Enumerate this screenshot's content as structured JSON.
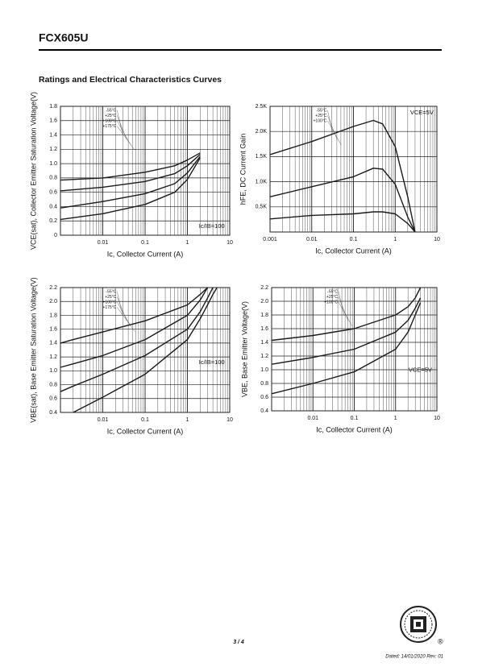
{
  "header": {
    "part": "FCX605U",
    "section": "Ratings and Electrical Characteristics Curves"
  },
  "footer": {
    "page": "3 / 4",
    "dated": "Dated: 14/01/2020 Rev: 01",
    "logo_mark": "®"
  },
  "chart_data": [
    {
      "type": "line",
      "xscale": "log",
      "grid": true,
      "legend": "top",
      "y_label": "VCE(sat), Collector Emitter Saturation Voltage(V)",
      "x_label": "Ic, Collector Current (A)",
      "annotation": "Ic/IB=100",
      "xlim": [
        0.001,
        10
      ],
      "xticks": [
        0.01,
        0.1,
        1,
        10
      ],
      "ylim": [
        0,
        1.8
      ],
      "yticks": [
        0,
        0.2,
        0.4,
        0.6,
        0.8,
        {
          "value": 1,
          "label": "1.0"
        },
        1.2,
        1.4,
        1.6,
        1.8
      ],
      "x": [
        0.001,
        0.01,
        0.1,
        0.5,
        1,
        2
      ],
      "series": [
        {
          "name": "-55°C",
          "color": "#1a1a1a",
          "values": [
            0.77,
            0.8,
            0.88,
            0.97,
            1.05,
            1.15
          ]
        },
        {
          "name": "+25°C",
          "color": "#1a1a1a",
          "values": [
            0.62,
            0.67,
            0.75,
            0.86,
            0.97,
            1.13
          ]
        },
        {
          "name": "+100°C",
          "color": "#1a1a1a",
          "values": [
            0.38,
            0.47,
            0.58,
            0.72,
            0.87,
            1.1
          ]
        },
        {
          "name": "+175°C",
          "color": "#1a1a1a",
          "values": [
            0.22,
            0.3,
            0.43,
            0.6,
            0.78,
            1.08
          ]
        }
      ]
    },
    {
      "type": "line",
      "xscale": "log",
      "grid": true,
      "legend": "top",
      "y_label": "hFE, DC Current Gain",
      "x_label": "Ic, Collector Current (A)",
      "annotation": "VCE=5V",
      "xlim": [
        0.001,
        10
      ],
      "xticks": [
        0.001,
        0.01,
        0.1,
        1,
        10
      ],
      "ylim": [
        0,
        2500
      ],
      "yticks": [
        {
          "value": 500,
          "label": "0.5K"
        },
        {
          "value": 1000,
          "label": "1.0K"
        },
        {
          "value": 1500,
          "label": "1.5K"
        },
        {
          "value": 2000,
          "label": "2.0K"
        },
        {
          "value": 2500,
          "label": "2.5K"
        }
      ],
      "x": [
        0.001,
        0.01,
        0.1,
        0.3,
        0.5,
        1,
        2,
        3
      ],
      "series": [
        {
          "name": "-55°C",
          "color": "#1a1a1a",
          "values": [
            260,
            330,
            360,
            400,
            400,
            360,
            170,
            0
          ]
        },
        {
          "name": "+25°C",
          "color": "#1a1a1a",
          "values": [
            700,
            900,
            1100,
            1270,
            1250,
            950,
            300,
            0
          ]
        },
        {
          "name": "+100°C",
          "color": "#1a1a1a",
          "values": [
            1540,
            1800,
            2100,
            2220,
            2150,
            1700,
            700,
            0
          ]
        }
      ]
    },
    {
      "type": "line",
      "xscale": "log",
      "grid": true,
      "legend": "top",
      "y_label": "VBE(sat), Base Emitter Saturation Voltage(V)",
      "x_label": "Ic, Collector Current (A)",
      "annotation": "Ic/IB=100",
      "xlim": [
        0.001,
        10
      ],
      "xticks": [
        0.01,
        0.1,
        1,
        10
      ],
      "ylim": [
        0.4,
        2.2
      ],
      "yticks": [
        0.4,
        0.6,
        0.8,
        {
          "value": 1,
          "label": "1.0"
        },
        1.2,
        1.4,
        1.6,
        1.8,
        {
          "value": 2,
          "label": "2.0"
        },
        2.2
      ],
      "x": [
        0.001,
        0.002,
        0.01,
        0.1,
        1,
        2,
        3,
        4,
        5
      ],
      "series": [
        {
          "name": "-55°C",
          "color": "#1a1a1a",
          "values": [
            1.4,
            1.45,
            1.56,
            1.72,
            1.95,
            2.1,
            2.2,
            null,
            null
          ]
        },
        {
          "name": "+25°C",
          "color": "#1a1a1a",
          "values": [
            1.05,
            1.1,
            1.22,
            1.45,
            1.8,
            2.02,
            2.2,
            null,
            null
          ]
        },
        {
          "name": "+100°C",
          "color": "#1a1a1a",
          "values": [
            0.7,
            0.78,
            0.95,
            1.22,
            1.6,
            1.85,
            2.05,
            2.2,
            null
          ]
        },
        {
          "name": "+175°C",
          "color": "#1a1a1a",
          "values": [
            null,
            0.4,
            0.62,
            0.95,
            1.45,
            1.75,
            1.95,
            2.1,
            2.2
          ]
        }
      ]
    },
    {
      "type": "line",
      "xscale": "log",
      "grid": true,
      "legend": "top",
      "y_label": "VBE, Base Emitter Voltage(V)",
      "x_label": "Ic, Collector Current (A)",
      "annotation": "VCE=5V",
      "xlim": [
        0.001,
        10
      ],
      "xticks": [
        0.01,
        0.1,
        1,
        10
      ],
      "ylim": [
        0.4,
        2.2
      ],
      "yticks": [
        0.4,
        0.6,
        0.8,
        {
          "value": 1,
          "label": "1.0"
        },
        1.2,
        1.4,
        1.6,
        1.8,
        {
          "value": 2,
          "label": "2.0"
        },
        2.2
      ],
      "x": [
        0.001,
        0.01,
        0.1,
        1,
        2,
        3,
        4
      ],
      "series": [
        {
          "name": "-55°C",
          "color": "#1a1a1a",
          "values": [
            1.43,
            1.5,
            1.6,
            1.8,
            1.92,
            2.05,
            2.2
          ]
        },
        {
          "name": "+25°C",
          "color": "#1a1a1a",
          "values": [
            1.08,
            1.18,
            1.3,
            1.55,
            1.72,
            1.9,
            2.05
          ]
        },
        {
          "name": "+100°C",
          "color": "#1a1a1a",
          "values": [
            0.65,
            0.8,
            0.97,
            1.3,
            1.55,
            1.8,
            1.98
          ]
        }
      ]
    }
  ]
}
